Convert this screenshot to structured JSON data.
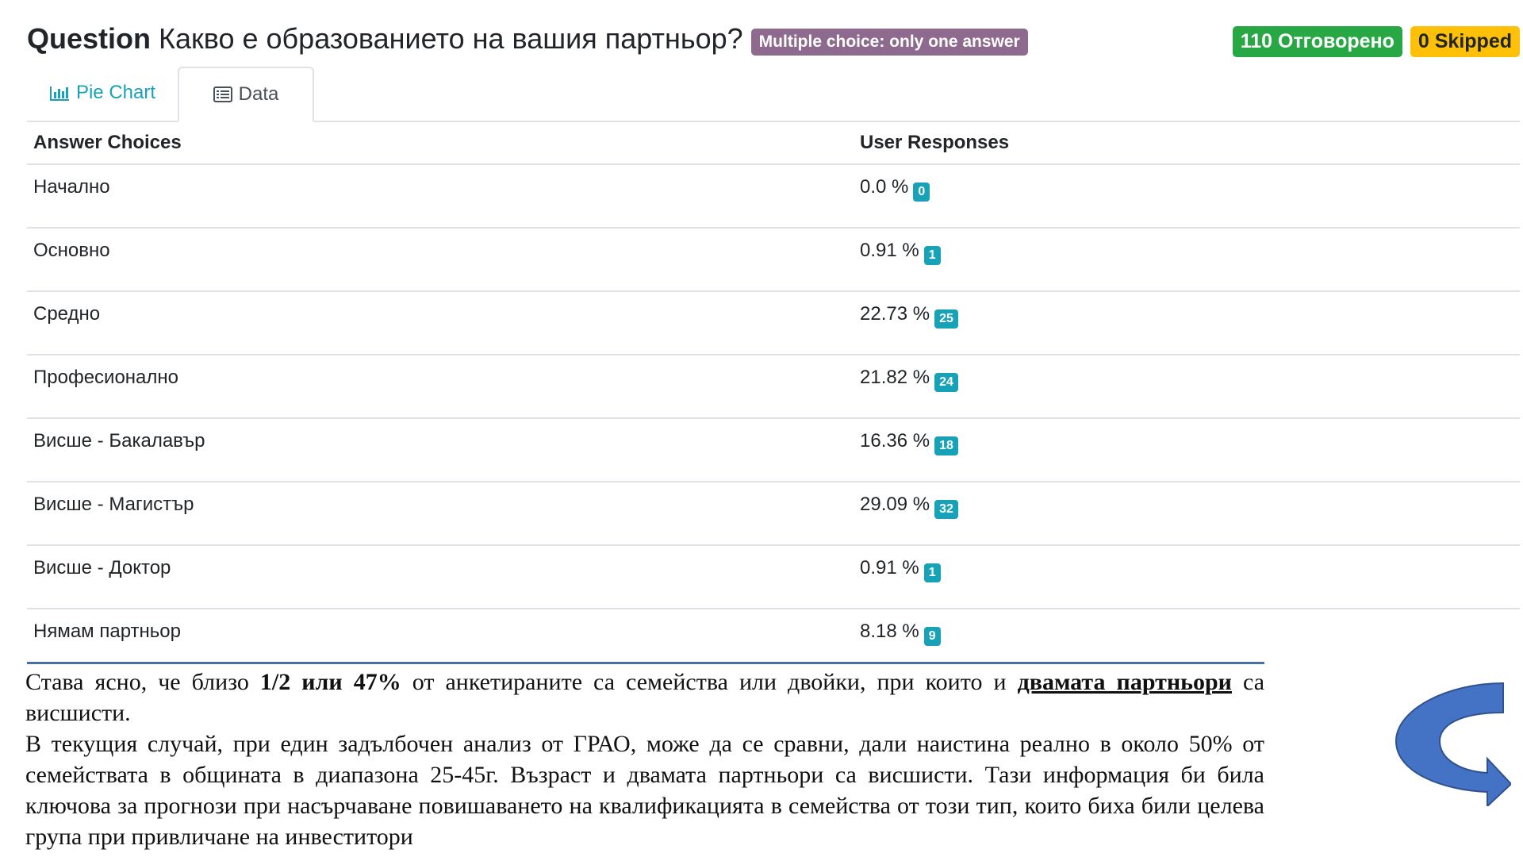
{
  "question": {
    "label": "Question",
    "text": "Какво е образованието на вашия партньор?",
    "type_badge": "Multiple choice: only one answer"
  },
  "stats": {
    "answered": "110 Отговорено",
    "skipped": "0 Skipped"
  },
  "tabs": {
    "pie_chart": "Pie Chart",
    "data": "Data"
  },
  "table": {
    "headers": {
      "choices": "Answer Choices",
      "responses": "User Responses"
    },
    "rows": [
      {
        "choice": "Начално",
        "percent": "0.0 %",
        "count": "0"
      },
      {
        "choice": "Основно",
        "percent": "0.91 %",
        "count": "1"
      },
      {
        "choice": "Средно",
        "percent": "22.73 %",
        "count": "25"
      },
      {
        "choice": "Професионално",
        "percent": "21.82 %",
        "count": "24"
      },
      {
        "choice": "Висше - Бакалавър",
        "percent": "16.36 %",
        "count": "18"
      },
      {
        "choice": "Висше - Магистър",
        "percent": "29.09 %",
        "count": "32"
      },
      {
        "choice": "Висше - Доктор",
        "percent": "0.91 %",
        "count": "1"
      },
      {
        "choice": "Нямам партньор",
        "percent": "8.18 %",
        "count": "9"
      }
    ]
  },
  "commentary": {
    "p1_a": "Става ясно, че близо ",
    "p1_bold": "1/2 или 47%",
    "p1_b": " от анкетираните са семейства или двойки, при които и ",
    "p1_underline": "двамата партньори",
    "p1_c": " са висшисти.",
    "p2": "В текущия случай, при един задълбочен анализ от ГРАО, може да се сравни, дали наистина реално в около 50% от семействата в общината в диапазона 25-45г. Възраст и двамата партньори са висшисти. Тази информация би била ключова за прогнози при насърчаване повишаването на квалификацията в семейства от този тип, които биха били целева група при привличане на инвеститори"
  },
  "colors": {
    "accent": "#17a2b8",
    "answered": "#28a745",
    "skipped": "#ffc107",
    "type_badge": "#8e6b8e",
    "arrow": "#4472c4"
  }
}
